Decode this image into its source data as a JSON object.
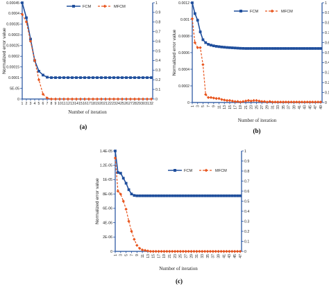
{
  "colors": {
    "fcm": "#1f4e9c",
    "mfcm": "#e8541c",
    "axis": "#1f4e9c",
    "text": "#222222"
  },
  "chart_data": [
    {
      "panel_label": "(a)",
      "type": "line",
      "xlabel": "Number of iteration",
      "ylabel": "Normalized error value",
      "x": [
        1,
        2,
        3,
        4,
        5,
        6,
        7,
        8,
        9,
        10,
        11,
        12,
        13,
        14,
        15,
        16,
        17,
        18,
        19,
        20,
        21,
        22,
        23,
        24,
        25,
        26,
        27,
        28,
        29,
        30,
        31,
        32
      ],
      "x_tick_labels": [
        "1",
        "2",
        "3",
        "4",
        "5",
        "6",
        "7",
        "8",
        "9",
        "10",
        "11",
        "12",
        "13",
        "14",
        "15",
        "16",
        "17",
        "18",
        "19",
        "20",
        "21",
        "22",
        "23",
        "24",
        "25",
        "26",
        "27",
        "28",
        "29",
        "30",
        "31",
        "32"
      ],
      "ylim_left": [
        0,
        0.00045
      ],
      "y_left_ticks": [
        "0",
        "5E-05",
        "0.0001",
        "0.00015",
        "0.0002",
        "0.00025",
        "0.0003",
        "0.00035",
        "0.0004",
        "0.00045"
      ],
      "ylim_right": [
        0,
        1
      ],
      "y_right_ticks": [
        "0",
        "0.1",
        "0.2",
        "0.3",
        "0.4",
        "0.5",
        "0.6",
        "0.7",
        "0.8",
        "0.9",
        "1"
      ],
      "legend": {
        "placement": "top-right"
      },
      "series": [
        {
          "name": "FCM",
          "axis": "left",
          "style": "solid-square",
          "values": [
            0.00045,
            0.00038,
            0.00028,
            0.00018,
            0.00013,
            0.000112,
            0.000102,
            0.0001,
            0.0001,
            0.0001,
            0.0001,
            0.0001,
            0.0001,
            0.0001,
            0.0001,
            0.0001,
            0.0001,
            0.0001,
            0.0001,
            0.0001,
            0.0001,
            0.0001,
            0.0001,
            0.0001,
            0.0001,
            0.0001,
            0.0001,
            0.0001,
            0.0001,
            0.0001,
            0.0001,
            0.0001
          ]
        },
        {
          "name": "MFCM",
          "axis": "right",
          "style": "dashed-diamond",
          "values": [
            0.88,
            0.8,
            0.6,
            0.4,
            0.2,
            0.05,
            0.01,
            0,
            0,
            0,
            0,
            0,
            0,
            0,
            0,
            0,
            0,
            0,
            0,
            0,
            0,
            0,
            0,
            0,
            0,
            0,
            0,
            0,
            0,
            0,
            0,
            0
          ]
        }
      ]
    },
    {
      "panel_label": "(b)",
      "type": "line",
      "xlabel": "Number of iteration",
      "ylabel": "Normalized error value",
      "x": [
        1,
        2,
        3,
        4,
        5,
        6,
        7,
        8,
        9,
        10,
        11,
        12,
        13,
        14,
        15,
        16,
        17,
        18,
        19,
        20,
        21,
        22,
        23,
        24,
        25,
        26,
        27,
        28,
        29,
        30,
        31,
        32,
        33,
        34,
        35,
        36,
        37,
        38,
        39,
        40,
        41,
        42,
        43,
        44,
        45,
        46,
        47,
        48,
        49
      ],
      "x_tick_labels": [
        "1",
        "3",
        "5",
        "7",
        "9",
        "11",
        "13",
        "15",
        "17",
        "19",
        "21",
        "23",
        "25",
        "27",
        "29",
        "31",
        "33",
        "35",
        "37",
        "39",
        "41",
        "43",
        "45",
        "47",
        "49"
      ],
      "ylim_left": [
        0,
        0.0012
      ],
      "y_left_ticks": [
        "0",
        "0.0002",
        "0.0004",
        "0.0006",
        "0.0008",
        "0.001",
        "0.0012"
      ],
      "ylim_right": [
        0,
        1
      ],
      "y_right_ticks": [
        "0",
        "0.1",
        "0.2",
        "0.3",
        "0.4",
        "0.5",
        "0.6",
        "0.7",
        "0.8",
        "0.9",
        "1"
      ],
      "legend": {
        "placement": "top-center"
      },
      "series": [
        {
          "name": "FCM",
          "axis": "left",
          "style": "solid-square",
          "values": [
            0.0012,
            0.00107,
            0.00099,
            0.00085,
            0.000755,
            0.00072,
            0.0007,
            0.00069,
            0.000682,
            0.000676,
            0.000672,
            0.000668,
            0.000665,
            0.000662,
            0.00066,
            0.000658,
            0.000656,
            0.000654,
            0.000652,
            0.000651,
            0.00065,
            0.00065,
            0.00065,
            0.00065,
            0.00065,
            0.00065,
            0.00065,
            0.00065,
            0.00065,
            0.00065,
            0.00065,
            0.00065,
            0.00065,
            0.00065,
            0.00065,
            0.00065,
            0.00065,
            0.00065,
            0.00065,
            0.00065,
            0.00065,
            0.00065,
            0.00065,
            0.00065,
            0.00065,
            0.00065,
            0.00065,
            0.00065,
            0.00065
          ]
        },
        {
          "name": "MFCM",
          "axis": "right",
          "style": "dashed-diamond",
          "values": [
            0.84,
            0.6,
            0.55,
            0.55,
            0.38,
            0.08,
            0.05,
            0.05,
            0.045,
            0.04,
            0.04,
            0.03,
            0.025,
            0.02,
            0.02,
            0.015,
            0.01,
            0.01,
            0.005,
            0.01,
            0.015,
            0.02,
            0.015,
            0.02,
            0.02,
            0.015,
            0.01,
            0.01,
            0.005,
            0.01,
            0.005,
            0.005,
            0.005,
            0.005,
            0.005,
            0.005,
            0.005,
            0.005,
            0.005,
            0.005,
            0.005,
            0.005,
            0.005,
            0.005,
            0.005,
            0.005,
            0.005,
            0.005,
            0.005
          ]
        }
      ]
    },
    {
      "panel_label": "(c)",
      "type": "line",
      "xlabel": "Number of iteration",
      "ylabel": "Normalized error value",
      "x": [
        1,
        2,
        3,
        4,
        5,
        6,
        7,
        8,
        9,
        10,
        11,
        12,
        13,
        14,
        15,
        16,
        17,
        18,
        19,
        20,
        21,
        22,
        23,
        24,
        25,
        26,
        27,
        28,
        29,
        30,
        31,
        32,
        33,
        34,
        35,
        36,
        37,
        38,
        39,
        40,
        41,
        42,
        43,
        44,
        45,
        46,
        47
      ],
      "x_tick_labels": [
        "1",
        "3",
        "5",
        "7",
        "9",
        "11",
        "13",
        "15",
        "17",
        "19",
        "21",
        "23",
        "25",
        "27",
        "29",
        "31",
        "33",
        "35",
        "37",
        "39",
        "41",
        "43",
        "45",
        "47"
      ],
      "ylim_left": [
        0,
        1.4e-05
      ],
      "y_left_ticks": [
        "0",
        "2E-06",
        "4E-06",
        "6E-06",
        "8E-06",
        "1E-05",
        "1.2E-05",
        "1.4E-05"
      ],
      "ylim_right": [
        0,
        1
      ],
      "y_right_ticks": [
        "0",
        "0.1",
        "0.2",
        "0.3",
        "0.4",
        "0.5",
        "0.6",
        "0.7",
        "0.8",
        "0.9",
        "1"
      ],
      "legend": {
        "placement": "top-center"
      },
      "series": [
        {
          "name": "FCM",
          "axis": "left",
          "style": "solid-square",
          "values": [
            1.4e-05,
            1.1e-05,
            1.09e-05,
            1.02e-05,
            9.5e-06,
            8.6e-06,
            8e-06,
            7.8e-06,
            7.75e-06,
            7.75e-06,
            7.75e-06,
            7.75e-06,
            7.75e-06,
            7.75e-06,
            7.75e-06,
            7.75e-06,
            7.75e-06,
            7.75e-06,
            7.75e-06,
            7.75e-06,
            7.75e-06,
            7.75e-06,
            7.75e-06,
            7.75e-06,
            7.75e-06,
            7.75e-06,
            7.75e-06,
            7.75e-06,
            7.75e-06,
            7.75e-06,
            7.75e-06,
            7.75e-06,
            7.75e-06,
            7.75e-06,
            7.75e-06,
            7.75e-06,
            7.75e-06,
            7.75e-06,
            7.75e-06,
            7.75e-06,
            7.75e-06,
            7.75e-06,
            7.75e-06,
            7.75e-06,
            7.75e-06,
            7.75e-06,
            7.75e-06
          ]
        },
        {
          "name": "MFCM",
          "axis": "right",
          "style": "dashed-diamond",
          "values": [
            0.93,
            0.6,
            0.57,
            0.5,
            0.42,
            0.3,
            0.2,
            0.12,
            0.06,
            0.03,
            0.015,
            0.01,
            0.005,
            0,
            0,
            0,
            0,
            0,
            0,
            0,
            0,
            0,
            0,
            0,
            0,
            0,
            0,
            0,
            0,
            0,
            0,
            0,
            0,
            0,
            0,
            0,
            0,
            0,
            0,
            0,
            0,
            0,
            0,
            0,
            0,
            0,
            0
          ]
        }
      ]
    }
  ]
}
